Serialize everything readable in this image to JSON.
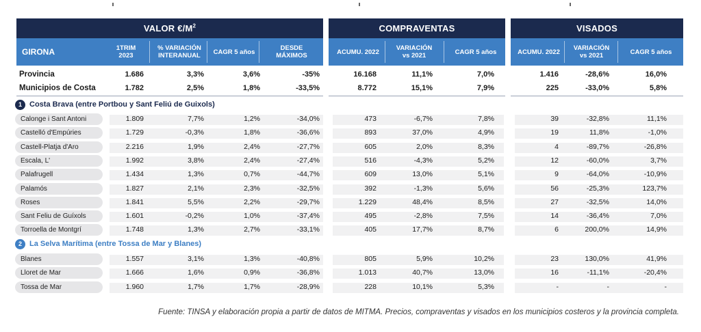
{
  "groups": {
    "valor": "VALOR €/M",
    "valor_sup": "2",
    "compraventas": "COMPRAVENTAS",
    "visados": "VISADOS"
  },
  "header": {
    "region": "GIRONA",
    "columns": [
      "1TRIM\n2023",
      "% VARIACIÓN\nINTERANUAL",
      "CAGR 5 años",
      "DESDE\nMÁXIMOS",
      "ACUMU. 2022",
      "VARIACIÓN\nvs 2021",
      "CAGR 5 años",
      "ACUMU. 2022",
      "VARIACIÓN\nvs 2021",
      "CAGR 5 años"
    ]
  },
  "summary_rows": [
    {
      "name": "Provincia",
      "v": [
        "1.686",
        "3,3%",
        "3,6%",
        "-35%",
        "16.168",
        "11,1%",
        "7,0%",
        "1.416",
        "-28,6%",
        "16,0%"
      ]
    },
    {
      "name": "Municipios de Costa",
      "v": [
        "1.782",
        "2,5%",
        "1,8%",
        "-33,5%",
        "8.772",
        "15,1%",
        "7,9%",
        "225",
        "-33,0%",
        "5,8%"
      ]
    }
  ],
  "sections": [
    {
      "number": "1",
      "title": "Costa Brava (entre Portbou y Sant Feliú de Guixols)",
      "color": "#1b2a4e",
      "rows": [
        {
          "name": "Calonge i Sant Antoni",
          "v": [
            "1.809",
            "7,7%",
            "1,2%",
            "-34,0%",
            "473",
            "-6,7%",
            "7,8%",
            "39",
            "-32,8%",
            "11,1%"
          ]
        },
        {
          "name": "Castelló d'Empúries",
          "v": [
            "1.729",
            "-0,3%",
            "1,8%",
            "-36,6%",
            "893",
            "37,0%",
            "4,9%",
            "19",
            "11,8%",
            "-1,0%"
          ]
        },
        {
          "name": "Castell-Platja d'Aro",
          "v": [
            "2.216",
            "1,9%",
            "2,4%",
            "-27,7%",
            "605",
            "2,0%",
            "8,3%",
            "4",
            "-89,7%",
            "-26,8%"
          ]
        },
        {
          "name": "Escala, L'",
          "v": [
            "1.992",
            "3,8%",
            "2,4%",
            "-27,4%",
            "516",
            "-4,3%",
            "5,2%",
            "12",
            "-60,0%",
            "3,7%"
          ]
        },
        {
          "name": "Palafrugell",
          "v": [
            "1.434",
            "1,3%",
            "0,7%",
            "-44,7%",
            "609",
            "13,0%",
            "5,1%",
            "9",
            "-64,0%",
            "-10,9%"
          ]
        },
        {
          "name": "Palamós",
          "v": [
            "1.827",
            "2,1%",
            "2,3%",
            "-32,5%",
            "392",
            "-1,3%",
            "5,6%",
            "56",
            "-25,3%",
            "123,7%"
          ]
        },
        {
          "name": "Roses",
          "v": [
            "1.841",
            "5,5%",
            "2,2%",
            "-29,7%",
            "1.229",
            "48,4%",
            "8,5%",
            "27",
            "-32,5%",
            "14,0%"
          ]
        },
        {
          "name": "Sant Feliu de Guíxols",
          "v": [
            "1.601",
            "-0,2%",
            "1,0%",
            "-37,4%",
            "495",
            "-2,8%",
            "7,5%",
            "14",
            "-36,4%",
            "7,0%"
          ]
        },
        {
          "name": "Torroella de Montgrí",
          "v": [
            "1.748",
            "1,3%",
            "2,7%",
            "-33,1%",
            "405",
            "17,7%",
            "8,7%",
            "6",
            "200,0%",
            "14,9%"
          ]
        }
      ]
    },
    {
      "number": "2",
      "title": "La Selva Marítima (entre  Tossa de Mar y Blanes)",
      "color": "#3e7fc4",
      "rows": [
        {
          "name": "Blanes",
          "v": [
            "1.557",
            "3,1%",
            "1,3%",
            "-40,8%",
            "805",
            "5,9%",
            "10,2%",
            "23",
            "130,0%",
            "41,9%"
          ]
        },
        {
          "name": "Lloret de Mar",
          "v": [
            "1.666",
            "1,6%",
            "0,9%",
            "-36,8%",
            "1.013",
            "40,7%",
            "13,0%",
            "16",
            "-11,1%",
            "-20,4%"
          ]
        },
        {
          "name": "Tossa de Mar",
          "v": [
            "1.960",
            "1,7%",
            "1,7%",
            "-28,9%",
            "228",
            "10,1%",
            "5,3%",
            "-",
            "-",
            "-"
          ]
        }
      ]
    }
  ],
  "footnote": "Fuente: TINSA y elaboración propia a partir de datos de MITMA. Precios, compraventas y visados en los municipios costeros y la provincia completa."
}
